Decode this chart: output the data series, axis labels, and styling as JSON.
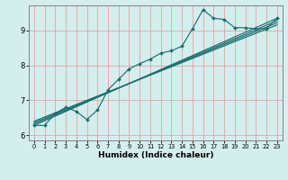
{
  "xlabel": "Humidex (Indice chaleur)",
  "background_color": "#d4eeee",
  "grid_color": "#e8a0a0",
  "line_color": "#1a7070",
  "xlim": [
    -0.5,
    23.5
  ],
  "ylim": [
    5.85,
    9.72
  ],
  "xticks": [
    0,
    1,
    2,
    3,
    4,
    5,
    6,
    7,
    8,
    9,
    10,
    11,
    12,
    13,
    14,
    15,
    16,
    17,
    18,
    19,
    20,
    21,
    22,
    23
  ],
  "yticks": [
    6,
    7,
    8,
    9
  ],
  "zigzag": {
    "x": [
      0,
      1,
      2,
      3,
      4,
      5,
      6,
      7,
      8,
      9,
      10,
      11,
      12,
      13,
      14,
      15,
      16,
      17,
      18,
      19,
      20,
      21,
      22,
      23
    ],
    "y": [
      6.28,
      6.28,
      6.62,
      6.8,
      6.68,
      6.45,
      6.72,
      7.3,
      7.6,
      7.9,
      8.05,
      8.18,
      8.35,
      8.42,
      8.55,
      9.05,
      9.6,
      9.35,
      9.32,
      9.08,
      9.08,
      9.05,
      9.05,
      9.35
    ]
  },
  "straight_lines": [
    {
      "x0": 0,
      "y0": 6.28,
      "x1": 23,
      "y1": 9.35
    },
    {
      "x0": 0,
      "y0": 6.32,
      "x1": 23,
      "y1": 9.28
    },
    {
      "x0": 0,
      "y0": 6.36,
      "x1": 23,
      "y1": 9.22
    },
    {
      "x0": 0,
      "y0": 6.4,
      "x1": 23,
      "y1": 9.16
    }
  ]
}
